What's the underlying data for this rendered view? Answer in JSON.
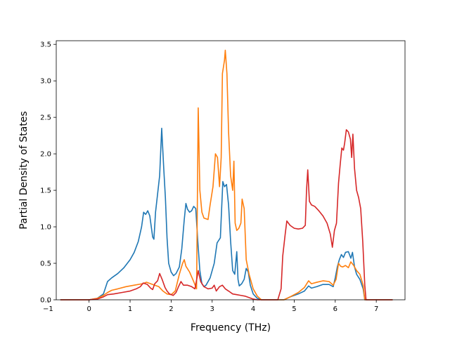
{
  "chart_data": {
    "type": "line",
    "title": "",
    "xlabel": "Frequency (THz)",
    "ylabel": "Partial Density of States",
    "xlim": [
      -0.8,
      7.7
    ],
    "ylim": [
      0,
      3.55
    ],
    "xticks": [
      -1,
      0,
      1,
      2,
      3,
      4,
      5,
      6,
      7
    ],
    "yticks": [
      0.0,
      0.5,
      1.0,
      1.5,
      2.0,
      2.5,
      3.0,
      3.5
    ],
    "xtick_labels": [
      "−1",
      "0",
      "1",
      "2",
      "3",
      "4",
      "5",
      "6",
      "7"
    ],
    "ytick_labels": [
      "0.0",
      "0.5",
      "1.0",
      "1.5",
      "2.0",
      "2.5",
      "3.0",
      "3.5"
    ],
    "grid": false,
    "legend": "none",
    "series": [
      {
        "color": "#1f77b4",
        "points": [
          [
            -0.7,
            0
          ],
          [
            0,
            0
          ],
          [
            0.2,
            0.02
          ],
          [
            0.35,
            0.08
          ],
          [
            0.45,
            0.25
          ],
          [
            0.55,
            0.3
          ],
          [
            0.7,
            0.36
          ],
          [
            0.85,
            0.44
          ],
          [
            1.0,
            0.55
          ],
          [
            1.1,
            0.65
          ],
          [
            1.2,
            0.8
          ],
          [
            1.28,
            1.0
          ],
          [
            1.33,
            1.2
          ],
          [
            1.38,
            1.17
          ],
          [
            1.43,
            1.22
          ],
          [
            1.48,
            1.15
          ],
          [
            1.55,
            0.86
          ],
          [
            1.58,
            0.83
          ],
          [
            1.62,
            1.2
          ],
          [
            1.67,
            1.45
          ],
          [
            1.72,
            1.7
          ],
          [
            1.77,
            2.35
          ],
          [
            1.82,
            1.8
          ],
          [
            1.86,
            1.4
          ],
          [
            1.9,
            0.85
          ],
          [
            1.94,
            0.5
          ],
          [
            2.0,
            0.38
          ],
          [
            2.06,
            0.33
          ],
          [
            2.12,
            0.36
          ],
          [
            2.2,
            0.45
          ],
          [
            2.26,
            0.7
          ],
          [
            2.32,
            1.1
          ],
          [
            2.36,
            1.32
          ],
          [
            2.4,
            1.24
          ],
          [
            2.45,
            1.2
          ],
          [
            2.5,
            1.22
          ],
          [
            2.55,
            1.28
          ],
          [
            2.6,
            1.25
          ],
          [
            2.65,
            0.8
          ],
          [
            2.7,
            0.4
          ],
          [
            2.75,
            0.22
          ],
          [
            2.8,
            0.18
          ],
          [
            2.85,
            0.2
          ],
          [
            2.95,
            0.3
          ],
          [
            3.05,
            0.5
          ],
          [
            3.12,
            0.78
          ],
          [
            3.2,
            0.85
          ],
          [
            3.26,
            1.62
          ],
          [
            3.3,
            1.55
          ],
          [
            3.35,
            1.58
          ],
          [
            3.4,
            1.3
          ],
          [
            3.45,
            0.8
          ],
          [
            3.5,
            0.4
          ],
          [
            3.55,
            0.35
          ],
          [
            3.6,
            0.66
          ],
          [
            3.63,
            0.28
          ],
          [
            3.66,
            0.19
          ],
          [
            3.72,
            0.22
          ],
          [
            3.78,
            0.28
          ],
          [
            3.83,
            0.43
          ],
          [
            3.88,
            0.38
          ],
          [
            3.93,
            0.2
          ],
          [
            4.0,
            0.08
          ],
          [
            4.1,
            0.02
          ],
          [
            4.2,
            0
          ],
          [
            4.75,
            0
          ],
          [
            4.9,
            0.04
          ],
          [
            5.1,
            0.08
          ],
          [
            5.25,
            0.12
          ],
          [
            5.35,
            0.19
          ],
          [
            5.42,
            0.16
          ],
          [
            5.55,
            0.18
          ],
          [
            5.7,
            0.21
          ],
          [
            5.85,
            0.21
          ],
          [
            5.95,
            0.18
          ],
          [
            6.0,
            0.3
          ],
          [
            6.05,
            0.45
          ],
          [
            6.1,
            0.55
          ],
          [
            6.15,
            0.62
          ],
          [
            6.2,
            0.58
          ],
          [
            6.25,
            0.65
          ],
          [
            6.32,
            0.66
          ],
          [
            6.38,
            0.57
          ],
          [
            6.42,
            0.65
          ],
          [
            6.47,
            0.45
          ],
          [
            6.52,
            0.35
          ],
          [
            6.6,
            0.28
          ],
          [
            6.68,
            0.15
          ],
          [
            6.72,
            0
          ],
          [
            7.4,
            0
          ]
        ]
      },
      {
        "color": "#ff7f0e",
        "points": [
          [
            -0.7,
            0
          ],
          [
            0,
            0
          ],
          [
            0.2,
            0.02
          ],
          [
            0.35,
            0.06
          ],
          [
            0.45,
            0.1
          ],
          [
            0.55,
            0.13
          ],
          [
            0.7,
            0.15
          ],
          [
            0.9,
            0.18
          ],
          [
            1.1,
            0.2
          ],
          [
            1.3,
            0.22
          ],
          [
            1.4,
            0.24
          ],
          [
            1.5,
            0.22
          ],
          [
            1.6,
            0.2
          ],
          [
            1.7,
            0.18
          ],
          [
            1.8,
            0.12
          ],
          [
            1.9,
            0.08
          ],
          [
            2.0,
            0.07
          ],
          [
            2.1,
            0.12
          ],
          [
            2.2,
            0.35
          ],
          [
            2.28,
            0.5
          ],
          [
            2.32,
            0.55
          ],
          [
            2.36,
            0.46
          ],
          [
            2.45,
            0.38
          ],
          [
            2.55,
            0.25
          ],
          [
            2.62,
            0.15
          ],
          [
            2.66,
            2.63
          ],
          [
            2.7,
            1.5
          ],
          [
            2.75,
            1.2
          ],
          [
            2.8,
            1.12
          ],
          [
            2.9,
            1.1
          ],
          [
            2.95,
            1.3
          ],
          [
            3.02,
            1.55
          ],
          [
            3.08,
            2.0
          ],
          [
            3.13,
            1.95
          ],
          [
            3.18,
            1.55
          ],
          [
            3.22,
            1.95
          ],
          [
            3.25,
            3.1
          ],
          [
            3.3,
            3.28
          ],
          [
            3.32,
            3.42
          ],
          [
            3.36,
            3.1
          ],
          [
            3.4,
            2.3
          ],
          [
            3.45,
            1.7
          ],
          [
            3.5,
            1.5
          ],
          [
            3.53,
            1.9
          ],
          [
            3.56,
            1.05
          ],
          [
            3.6,
            0.95
          ],
          [
            3.65,
            0.98
          ],
          [
            3.7,
            1.05
          ],
          [
            3.73,
            1.38
          ],
          [
            3.78,
            1.25
          ],
          [
            3.83,
            0.55
          ],
          [
            3.9,
            0.35
          ],
          [
            4.0,
            0.15
          ],
          [
            4.1,
            0.05
          ],
          [
            4.2,
            0
          ],
          [
            4.75,
            0
          ],
          [
            4.9,
            0.04
          ],
          [
            5.1,
            0.1
          ],
          [
            5.25,
            0.17
          ],
          [
            5.35,
            0.26
          ],
          [
            5.42,
            0.22
          ],
          [
            5.55,
            0.24
          ],
          [
            5.7,
            0.26
          ],
          [
            5.85,
            0.25
          ],
          [
            5.95,
            0.2
          ],
          [
            6.02,
            0.28
          ],
          [
            6.08,
            0.5
          ],
          [
            6.13,
            0.46
          ],
          [
            6.18,
            0.45
          ],
          [
            6.25,
            0.47
          ],
          [
            6.32,
            0.44
          ],
          [
            6.38,
            0.52
          ],
          [
            6.45,
            0.47
          ],
          [
            6.52,
            0.4
          ],
          [
            6.6,
            0.35
          ],
          [
            6.68,
            0.2
          ],
          [
            6.72,
            0
          ],
          [
            7.4,
            0
          ]
        ]
      },
      {
        "color": "#d62728",
        "points": [
          [
            -0.7,
            0
          ],
          [
            0,
            0
          ],
          [
            0.2,
            0.01
          ],
          [
            0.35,
            0.04
          ],
          [
            0.45,
            0.07
          ],
          [
            0.6,
            0.08
          ],
          [
            0.8,
            0.1
          ],
          [
            1.0,
            0.12
          ],
          [
            1.15,
            0.15
          ],
          [
            1.25,
            0.18
          ],
          [
            1.32,
            0.23
          ],
          [
            1.42,
            0.21
          ],
          [
            1.5,
            0.16
          ],
          [
            1.55,
            0.14
          ],
          [
            1.6,
            0.22
          ],
          [
            1.67,
            0.26
          ],
          [
            1.72,
            0.36
          ],
          [
            1.78,
            0.28
          ],
          [
            1.85,
            0.17
          ],
          [
            1.9,
            0.12
          ],
          [
            1.96,
            0.08
          ],
          [
            2.05,
            0.06
          ],
          [
            2.12,
            0.1
          ],
          [
            2.18,
            0.18
          ],
          [
            2.24,
            0.25
          ],
          [
            2.3,
            0.2
          ],
          [
            2.4,
            0.2
          ],
          [
            2.5,
            0.18
          ],
          [
            2.58,
            0.15
          ],
          [
            2.63,
            0.3
          ],
          [
            2.66,
            0.4
          ],
          [
            2.72,
            0.25
          ],
          [
            2.8,
            0.18
          ],
          [
            2.9,
            0.15
          ],
          [
            3.0,
            0.16
          ],
          [
            3.05,
            0.2
          ],
          [
            3.1,
            0.12
          ],
          [
            3.18,
            0.18
          ],
          [
            3.25,
            0.2
          ],
          [
            3.32,
            0.15
          ],
          [
            3.4,
            0.12
          ],
          [
            3.5,
            0.08
          ],
          [
            3.6,
            0.07
          ],
          [
            3.7,
            0.06
          ],
          [
            3.8,
            0.05
          ],
          [
            3.9,
            0.03
          ],
          [
            4.0,
            0.01
          ],
          [
            4.1,
            0
          ],
          [
            4.6,
            0
          ],
          [
            4.68,
            0.15
          ],
          [
            4.72,
            0.6
          ],
          [
            4.78,
            0.9
          ],
          [
            4.82,
            1.08
          ],
          [
            4.9,
            1.02
          ],
          [
            5.0,
            0.98
          ],
          [
            5.1,
            0.97
          ],
          [
            5.2,
            0.98
          ],
          [
            5.27,
            1.02
          ],
          [
            5.3,
            1.5
          ],
          [
            5.33,
            1.78
          ],
          [
            5.37,
            1.35
          ],
          [
            5.42,
            1.3
          ],
          [
            5.5,
            1.28
          ],
          [
            5.6,
            1.22
          ],
          [
            5.7,
            1.15
          ],
          [
            5.8,
            1.05
          ],
          [
            5.88,
            0.9
          ],
          [
            5.93,
            0.72
          ],
          [
            5.98,
            0.95
          ],
          [
            6.03,
            1.05
          ],
          [
            6.08,
            1.6
          ],
          [
            6.12,
            1.85
          ],
          [
            6.16,
            2.08
          ],
          [
            6.2,
            2.05
          ],
          [
            6.23,
            2.15
          ],
          [
            6.27,
            2.33
          ],
          [
            6.32,
            2.3
          ],
          [
            6.37,
            2.2
          ],
          [
            6.4,
            1.95
          ],
          [
            6.43,
            2.27
          ],
          [
            6.47,
            1.8
          ],
          [
            6.52,
            1.5
          ],
          [
            6.57,
            1.4
          ],
          [
            6.62,
            1.25
          ],
          [
            6.67,
            0.8
          ],
          [
            6.72,
            0.2
          ],
          [
            6.75,
            0
          ],
          [
            7.4,
            0
          ]
        ]
      }
    ]
  }
}
